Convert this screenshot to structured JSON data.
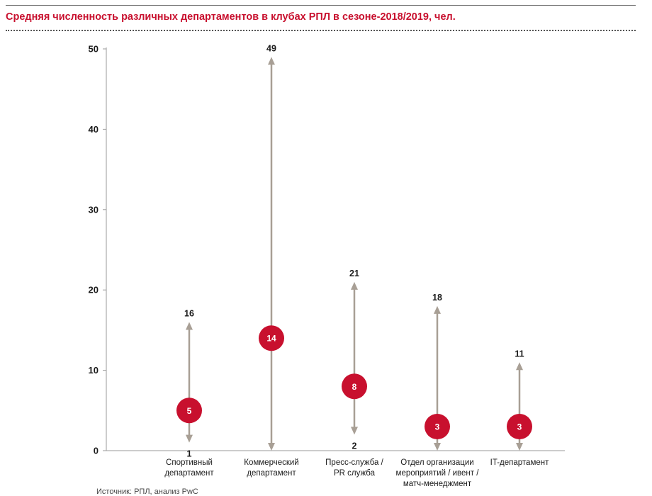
{
  "header": {
    "title": "Средняя численность различных департаментов в клубах РПЛ в сезоне-2018/2019, чел."
  },
  "footnote": "Источник: РПЛ, анализ PwC",
  "colors": {
    "accent": "#c8102e",
    "range_line": "#a89f95",
    "axis": "#9a9a9a",
    "text": "#1a1a1a"
  },
  "chart_data": {
    "type": "range-dot",
    "title": "Средняя численность различных департаментов в клубах РПЛ в сезоне-2018/2019, чел.",
    "ylim": [
      0,
      50
    ],
    "yticks": [
      0,
      10,
      20,
      30,
      40,
      50
    ],
    "grid": false,
    "categories": [
      [
        "Спортивный",
        "департамент"
      ],
      [
        "Коммерческий",
        "департамент"
      ],
      [
        "Пресс-служба /",
        "PR служба"
      ],
      [
        "Отдел организации",
        "мероприятий / ивент /",
        "матч-менеджмент"
      ],
      [
        "IT-департамент"
      ]
    ],
    "series": [
      {
        "name": "min",
        "values": [
          1,
          0,
          2,
          0,
          0
        ]
      },
      {
        "name": "max",
        "values": [
          16,
          49,
          21,
          18,
          11
        ]
      },
      {
        "name": "average",
        "values": [
          5,
          14,
          8,
          3,
          3
        ]
      }
    ],
    "max_labels": [
      "16",
      "49",
      "21",
      "18",
      "11"
    ],
    "min_labels": [
      "1",
      "",
      "2",
      "",
      ""
    ],
    "avg_labels": [
      "5",
      "14",
      "8",
      "3",
      "3"
    ]
  }
}
